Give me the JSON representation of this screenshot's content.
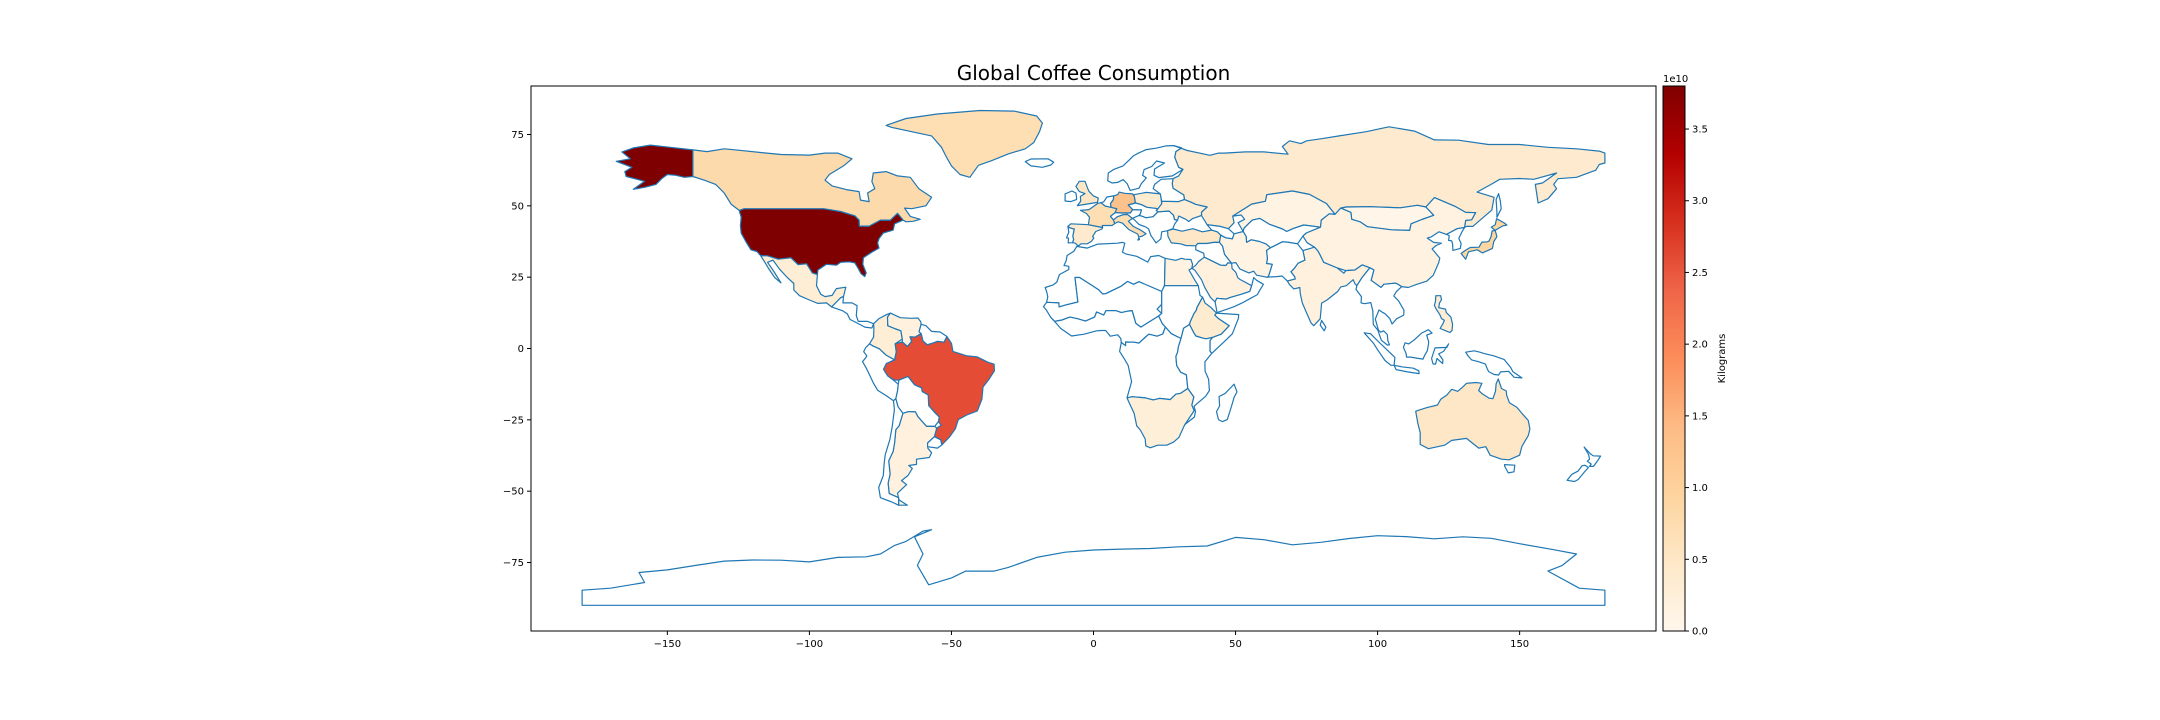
{
  "chart_data": {
    "type": "choropleth",
    "title": "Global Coffee Consumption",
    "xlabel": "",
    "ylabel": "",
    "xlim": [
      -198,
      198
    ],
    "ylim": [
      -99,
      92
    ],
    "x_ticks": [
      -150,
      -100,
      -50,
      0,
      50,
      100,
      150
    ],
    "x_tick_labels": [
      "−150",
      "−100",
      "−50",
      "0",
      "50",
      "100",
      "150"
    ],
    "y_ticks": [
      75,
      50,
      25,
      0,
      -25,
      -50,
      -75
    ],
    "y_tick_labels": [
      "75",
      "50",
      "25",
      "0",
      "−25",
      "−50",
      "−75"
    ],
    "colormap": "OrRd",
    "colorbar": {
      "label": "Kilograms",
      "range": [
        0.0,
        38000000000.0
      ],
      "offset_text": "1e10",
      "ticks": [
        0.0,
        0.5,
        1.0,
        1.5,
        2.0,
        2.5,
        3.0,
        3.5
      ],
      "tick_labels": [
        "0.0",
        "0.5",
        "1.0",
        "1.5",
        "2.0",
        "2.5",
        "3.0",
        "3.5"
      ]
    },
    "border_color": "#1f77b4",
    "regions": [
      {
        "name": "United States of America",
        "value": 38000000000.0
      },
      {
        "name": "Brazil",
        "value": 26000000000.0
      },
      {
        "name": "Germany",
        "value": 13000000000.0
      },
      {
        "name": "Japan",
        "value": 9000000000.0
      },
      {
        "name": "Canada",
        "value": 8000000000.0
      },
      {
        "name": "France",
        "value": 7000000000.0
      },
      {
        "name": "Italy",
        "value": 7000000000.0
      },
      {
        "name": "Greenland",
        "value": 7000000000.0
      },
      {
        "name": "Russia",
        "value": 4000000000.0
      },
      {
        "name": "Australia",
        "value": 5000000000.0
      },
      {
        "name": "United Kingdom",
        "value": 5000000000.0
      },
      {
        "name": "Spain",
        "value": 4000000000.0
      },
      {
        "name": "Turkey",
        "value": 5000000000.0
      },
      {
        "name": "Mexico",
        "value": 3000000000.0
      },
      {
        "name": "Argentina",
        "value": 2000000000.0
      },
      {
        "name": "China",
        "value": 1500000000.0
      },
      {
        "name": "India",
        "value": 2000000000.0
      },
      {
        "name": "Ethiopia",
        "value": 3500000000.0
      },
      {
        "name": "Indonesia",
        "value": 2500000000.0
      },
      {
        "name": "Philippines",
        "value": 3000000000.0
      },
      {
        "name": "Saudi Arabia",
        "value": 2000000000.0
      },
      {
        "name": "Iran",
        "value": 1000000000.0
      },
      {
        "name": "Kazakhstan",
        "value": 1000000000.0
      },
      {
        "name": "Mongolia",
        "value": 500000000.0
      },
      {
        "name": "Colombia",
        "value": 3000000000.0
      },
      {
        "name": "Venezuela",
        "value": 2000000000.0
      },
      {
        "name": "South Africa",
        "value": 2500000000.0
      },
      {
        "name": "Algeria",
        "value": 2000000000.0
      },
      {
        "name": "Egypt",
        "value": 1500000000.0
      },
      {
        "name": "Cameroon",
        "value": 500000000.0
      },
      {
        "name": "Ukraine",
        "value": 3000000000.0
      },
      {
        "name": "Poland",
        "value": 3500000000.0
      },
      {
        "name": "Sweden",
        "value": 3000000000.0
      },
      {
        "name": "Norway",
        "value": 2500000000.0
      },
      {
        "name": "Finland",
        "value": 3000000000.0
      },
      {
        "name": "Malaysia",
        "value": 1000000000.0
      },
      {
        "name": "Thailand",
        "value": 1500000000.0
      },
      {
        "name": "Vietnam",
        "value": 2000000000.0
      },
      {
        "name": "South Korea",
        "value": 3000000000.0
      },
      {
        "name": "Algeria/Mali/etc",
        "value": 0.0
      }
    ]
  }
}
